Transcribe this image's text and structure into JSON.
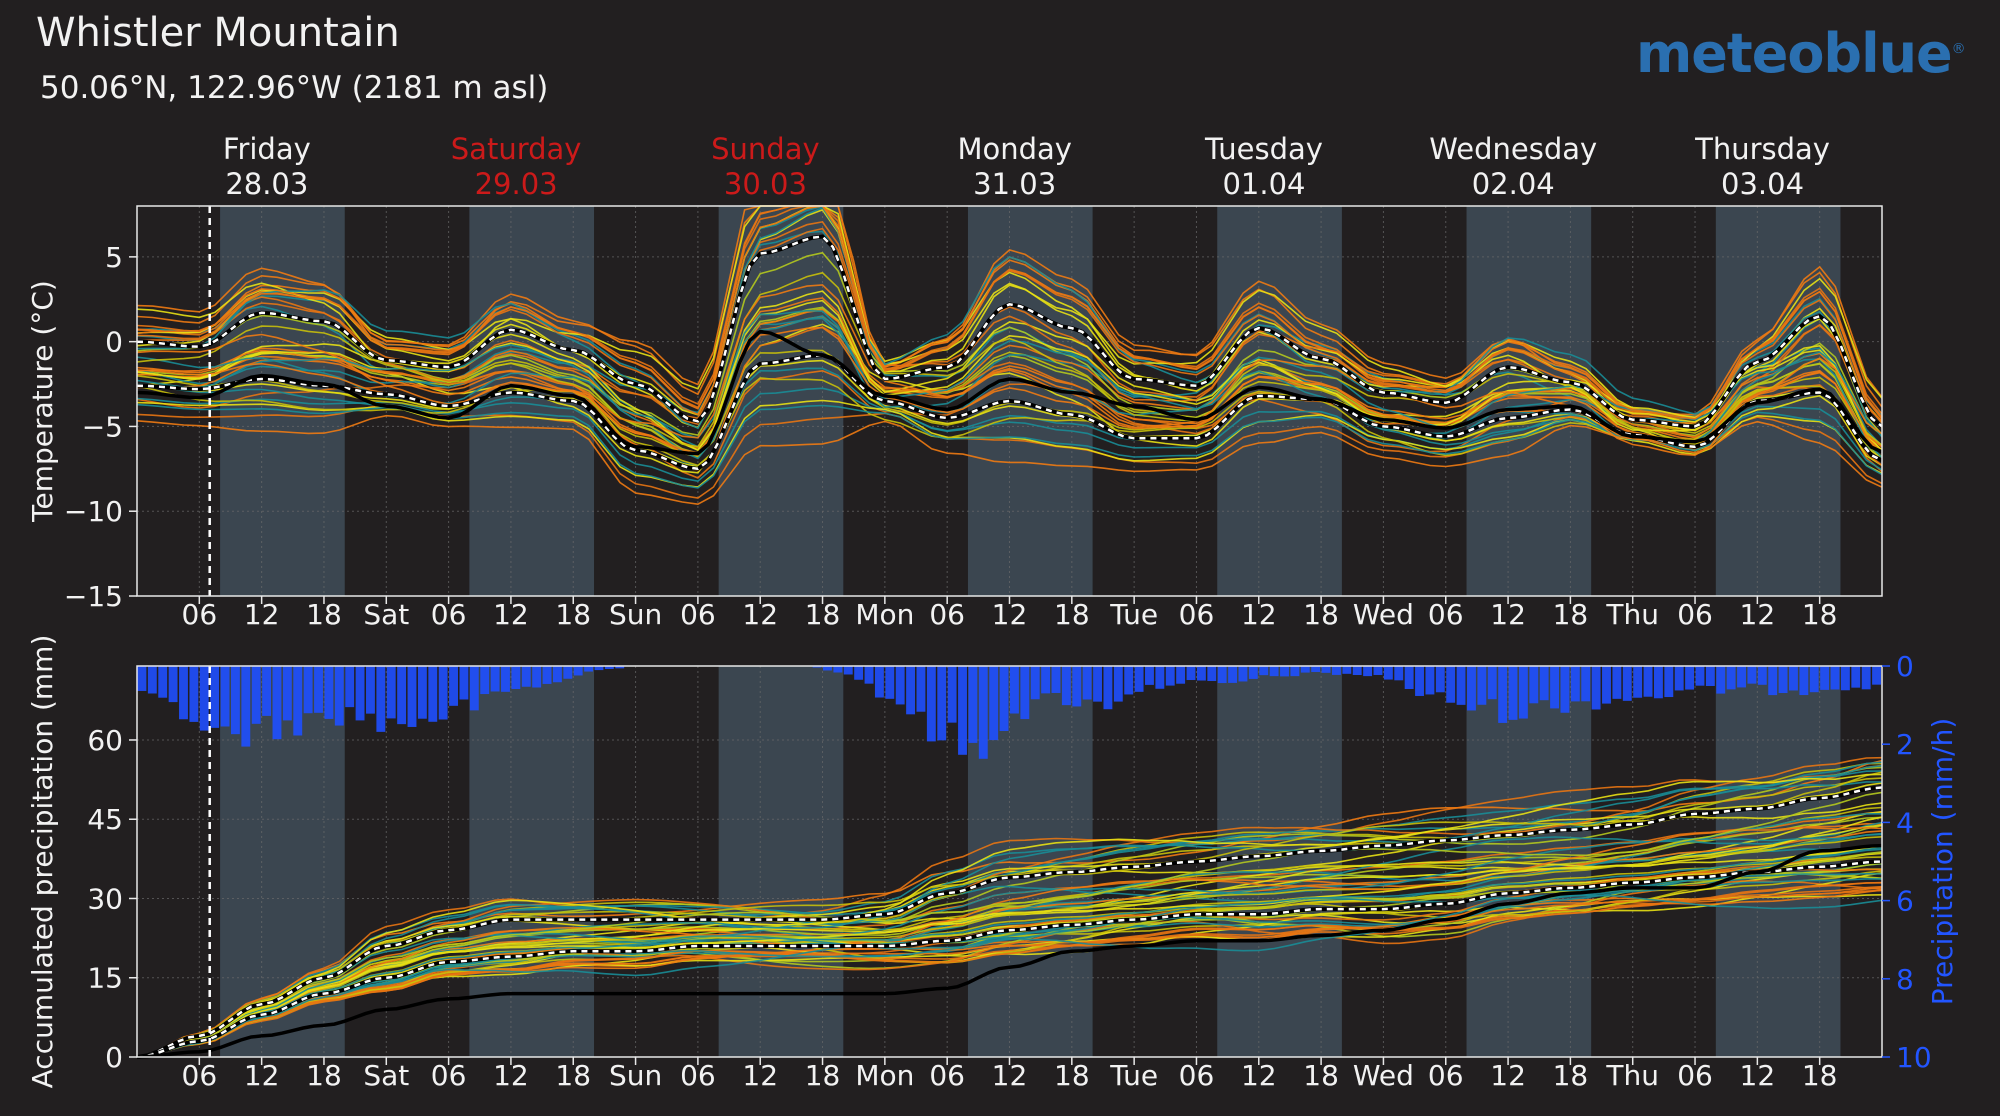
{
  "header": {
    "title": "Whistler Mountain",
    "subtitle": "50.06°N, 122.96°W (2181 m asl)",
    "brand": "meteoblue",
    "brand_mark": "®"
  },
  "colors": {
    "background": "#221f20",
    "daytime_band": "#3b4650",
    "brand": "#2a6fb0",
    "weekend": "#cc1a1a",
    "precip_bars": "#1f4fff",
    "right_axis": "#2255ff",
    "ensemble": [
      "#c8bf0a",
      "#e8e014",
      "#f07a12",
      "#e87412",
      "#1a8c96",
      "#b4c81e"
    ]
  },
  "days": [
    {
      "name": "Friday",
      "date": "28.03",
      "weekend": false
    },
    {
      "name": "Saturday",
      "date": "29.03",
      "weekend": true
    },
    {
      "name": "Sunday",
      "date": "30.03",
      "weekend": true
    },
    {
      "name": "Monday",
      "date": "31.03",
      "weekend": false
    },
    {
      "name": "Tuesday",
      "date": "01.04",
      "weekend": false
    },
    {
      "name": "Wednesday",
      "date": "02.04",
      "weekend": false
    },
    {
      "name": "Thursday",
      "date": "03.04",
      "weekend": false
    }
  ],
  "x_tick_labels": [
    "06",
    "12",
    "18",
    "Sat",
    "06",
    "12",
    "18",
    "Sun",
    "06",
    "12",
    "18",
    "Mon",
    "06",
    "12",
    "18",
    "Tue",
    "06",
    "12",
    "18",
    "Wed",
    "06",
    "12",
    "18",
    "Thu",
    "06",
    "12",
    "18"
  ],
  "chart_data": [
    {
      "type": "line",
      "ylabel": "Temperature (°C)",
      "ylim": [
        -15,
        8
      ],
      "yticks": [
        5,
        0,
        -5,
        -10,
        -15
      ],
      "ytick_labels": [
        "5",
        "0",
        "−5",
        "−10",
        "−15"
      ],
      "xlim_hours": [
        0,
        168
      ],
      "grid": true,
      "now_marker_hour": 7,
      "daytime_hours": [
        [
          8,
          20
        ],
        [
          32,
          44
        ],
        [
          56,
          68
        ],
        [
          80,
          92
        ],
        [
          104,
          116
        ],
        [
          128,
          140
        ],
        [
          152,
          164
        ]
      ],
      "ensemble_count": 40,
      "series": [
        {
          "role": "upper-dashed",
          "x": [
            0,
            6,
            12,
            18,
            24,
            30,
            36,
            42,
            48,
            54,
            60,
            66,
            72,
            78,
            84,
            90,
            96,
            102,
            108,
            114,
            120,
            126,
            132,
            138,
            144,
            150,
            156,
            162,
            168
          ],
          "values": [
            0,
            -0.3,
            1.7,
            1.2,
            -1.1,
            -1.5,
            0.7,
            -0.5,
            -2.5,
            -4.7,
            5.2,
            6.2,
            -2.2,
            -1.5,
            2.2,
            0.8,
            -2.2,
            -2.6,
            0.8,
            -1.0,
            -3.0,
            -3.6,
            -1.5,
            -2.4,
            -4.6,
            -5.0,
            -1.2,
            1.5,
            -5.0
          ]
        },
        {
          "role": "lower-dashed",
          "x": [
            0,
            6,
            12,
            18,
            24,
            30,
            36,
            42,
            48,
            54,
            60,
            66,
            72,
            78,
            84,
            90,
            96,
            102,
            108,
            114,
            120,
            126,
            132,
            138,
            144,
            150,
            156,
            162,
            168
          ],
          "values": [
            -2.6,
            -2.8,
            -2.2,
            -2.6,
            -3.1,
            -3.8,
            -3.0,
            -3.5,
            -6.4,
            -7.5,
            -1.3,
            -0.8,
            -3.5,
            -4.5,
            -3.5,
            -4.3,
            -5.7,
            -5.7,
            -3.2,
            -3.4,
            -5.0,
            -5.6,
            -4.5,
            -4.0,
            -5.5,
            -6.2,
            -3.5,
            -3.0,
            -7.0
          ]
        },
        {
          "role": "solid-black",
          "x": [
            0,
            6,
            12,
            18,
            24,
            30,
            36,
            42,
            48,
            54,
            60,
            66,
            72,
            78,
            84,
            90,
            96,
            102,
            108,
            114,
            120,
            126,
            132,
            138,
            144,
            150,
            156,
            162,
            168
          ],
          "values": [
            -3.0,
            -3.3,
            -2.0,
            -2.5,
            -3.8,
            -4.5,
            -2.6,
            -3.2,
            -6.2,
            -6.6,
            0.6,
            -0.8,
            -3.2,
            -4.0,
            -2.2,
            -3.0,
            -3.8,
            -4.6,
            -2.7,
            -3.4,
            -4.6,
            -5.1,
            -4.0,
            -3.8,
            -5.6,
            -5.9,
            -3.6,
            -2.8,
            -6.5
          ]
        }
      ]
    },
    {
      "type": "line",
      "ylabel": "Accumulated precipitation (mm)",
      "ylim": [
        0,
        74
      ],
      "yticks": [
        0,
        15,
        30,
        45,
        60
      ],
      "y2label": "Precipitation (mm/h)",
      "y2lim": [
        0,
        10
      ],
      "y2ticks": [
        0,
        2,
        4,
        6,
        8,
        10
      ],
      "xlim_hours": [
        0,
        168
      ],
      "grid": true,
      "now_marker_hour": 7,
      "ensemble_count": 60,
      "series": [
        {
          "role": "upper-dashed",
          "x": [
            0,
            6,
            12,
            18,
            24,
            30,
            36,
            42,
            48,
            54,
            60,
            66,
            72,
            78,
            84,
            90,
            96,
            102,
            108,
            114,
            120,
            126,
            132,
            138,
            144,
            150,
            156,
            162,
            168
          ],
          "values": [
            0,
            4,
            10,
            15,
            21,
            24,
            26,
            26,
            26,
            26,
            26,
            26,
            27,
            31,
            34,
            35,
            36,
            37,
            38,
            39,
            40,
            41,
            42,
            43,
            44,
            46,
            47,
            49,
            51
          ]
        },
        {
          "role": "lower-dashed",
          "x": [
            0,
            6,
            12,
            18,
            24,
            30,
            36,
            42,
            48,
            54,
            60,
            66,
            72,
            78,
            84,
            90,
            96,
            102,
            108,
            114,
            120,
            126,
            132,
            138,
            144,
            150,
            156,
            162,
            168
          ],
          "values": [
            0,
            3,
            8,
            12,
            15,
            18,
            19,
            20,
            20,
            21,
            21,
            21,
            21,
            22,
            24,
            25,
            26,
            27,
            27,
            28,
            28,
            29,
            31,
            32,
            33,
            34,
            35,
            36,
            37
          ]
        },
        {
          "role": "solid-black",
          "x": [
            0,
            6,
            12,
            18,
            24,
            30,
            36,
            42,
            48,
            54,
            60,
            66,
            72,
            78,
            84,
            90,
            96,
            102,
            108,
            114,
            120,
            126,
            132,
            138,
            144,
            150,
            156,
            162,
            168
          ],
          "values": [
            0,
            1,
            4,
            6,
            9,
            11,
            12,
            12,
            12,
            12,
            12,
            12,
            12,
            13,
            17,
            20,
            21,
            22,
            22,
            23,
            24,
            26,
            29,
            31,
            32,
            32,
            35,
            39,
            40
          ]
        },
        {
          "role": "hourly-precip-bars",
          "x": [
            0,
            4,
            8,
            12,
            16,
            20,
            24,
            28,
            32,
            36,
            40,
            44,
            48,
            52,
            56,
            60,
            64,
            68,
            72,
            76,
            80,
            84,
            88,
            92,
            96,
            100,
            104,
            108,
            112,
            116,
            120,
            124,
            128,
            132,
            136,
            140,
            144,
            148,
            152,
            156,
            160,
            164,
            168
          ],
          "values": [
            0.8,
            1.2,
            1.8,
            1.6,
            1.4,
            1.2,
            1.5,
            1.3,
            1.0,
            0.6,
            0.4,
            0.1,
            0.0,
            0.0,
            0.0,
            0.0,
            0.0,
            0.2,
            0.8,
            1.6,
            2.2,
            1.2,
            0.8,
            1.0,
            0.6,
            0.4,
            0.5,
            0.3,
            0.2,
            0.2,
            0.3,
            0.8,
            1.0,
            1.2,
            1.0,
            0.9,
            0.8,
            0.7,
            0.6,
            0.6,
            0.6,
            0.5,
            0.6
          ]
        }
      ]
    }
  ]
}
